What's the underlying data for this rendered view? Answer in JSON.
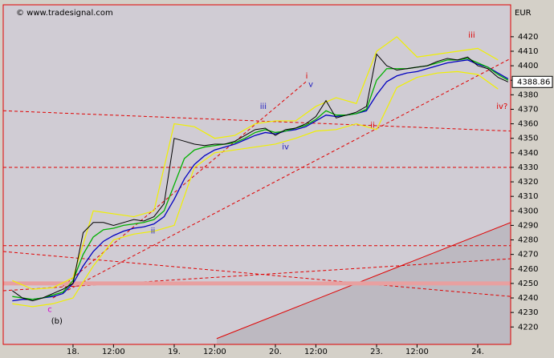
{
  "chart_data": {
    "type": "line",
    "watermark": "© www.tradesignal.com",
    "axis_unit": "EUR",
    "xlim": [
      -6.9,
      43.25
    ],
    "ylim": [
      4208,
      4442
    ],
    "xticks": [
      {
        "value": 0,
        "label": "18."
      },
      {
        "value": 4,
        "label": "12:00"
      },
      {
        "value": 10,
        "label": "19."
      },
      {
        "value": 14,
        "label": "12:00"
      },
      {
        "value": 20,
        "label": "20."
      },
      {
        "value": 24,
        "label": "12:00"
      },
      {
        "value": 30,
        "label": "23."
      },
      {
        "value": 34,
        "label": "12:00"
      },
      {
        "value": 40,
        "label": "24."
      }
    ],
    "yticks": [
      4220,
      4230,
      4240,
      4250,
      4260,
      4270,
      4280,
      4290,
      4300,
      4310,
      4320,
      4330,
      4340,
      4350,
      4360,
      4370,
      4380,
      4390,
      4400,
      4410,
      4420
    ],
    "x": [
      -6,
      -5,
      -4,
      -3,
      -2,
      -1,
      0,
      1,
      2,
      3,
      4,
      5,
      6,
      7,
      8,
      9,
      10,
      11,
      12,
      13,
      14,
      15,
      16,
      17,
      18,
      19,
      20,
      21,
      22,
      23,
      24,
      25,
      26,
      27,
      28,
      29,
      30,
      31,
      32,
      33,
      34,
      35,
      36,
      37,
      38,
      39,
      40,
      41,
      42,
      43
    ],
    "series": [
      {
        "color": "#f0f000",
        "width": 1.2,
        "x": [
          -6,
          -4,
          -2,
          0,
          2,
          4,
          6,
          8,
          10,
          12,
          14,
          16,
          18,
          20,
          22,
          24,
          26,
          28,
          30,
          32,
          34,
          36,
          38,
          40,
          42
        ],
        "values": [
          4252,
          4246,
          4247,
          4254,
          4300,
          4298,
          4296,
          4300,
          4360,
          4358,
          4350,
          4352,
          4360,
          4362,
          4362,
          4372,
          4378,
          4374,
          4410,
          4420,
          4406,
          4408,
          4410,
          4412,
          4404
        ]
      },
      {
        "color": "#f0f000",
        "width": 1.2,
        "x": [
          -6,
          -4,
          -2,
          0,
          2,
          4,
          6,
          8,
          10,
          12,
          14,
          16,
          18,
          20,
          22,
          24,
          26,
          28,
          30,
          32,
          34,
          36,
          38,
          40,
          42
        ],
        "values": [
          4236,
          4234,
          4236,
          4240,
          4262,
          4280,
          4284,
          4286,
          4290,
          4330,
          4340,
          4342,
          4344,
          4346,
          4350,
          4355,
          4356,
          4360,
          4356,
          4385,
          4392,
          4395,
          4396,
          4394,
          4384
        ]
      },
      {
        "color": "#0000c0",
        "width": 1.3,
        "values": [
          4238,
          4239,
          4239,
          4240,
          4241,
          4243,
          4250,
          4262,
          4272,
          4279,
          4283,
          4286,
          4288,
          4289,
          4291,
          4296,
          4308,
          4322,
          4332,
          4338,
          4342,
          4344,
          4346,
          4349,
          4352,
          4354,
          4353,
          4355,
          4356,
          4358,
          4362,
          4366,
          4365,
          4366,
          4367,
          4369,
          4380,
          4389,
          4393,
          4395,
          4396,
          4398,
          4400,
          4402,
          4403,
          4404,
          4401,
          4399,
          4395,
          4391
        ]
      },
      {
        "color": "#00b000",
        "width": 1.3,
        "values": [
          4241,
          4240,
          4239,
          4240,
          4242,
          4244,
          4252,
          4270,
          4282,
          4287,
          4288,
          4290,
          4291,
          4292,
          4294,
          4300,
          4318,
          4336,
          4342,
          4344,
          4345,
          4346,
          4347,
          4350,
          4354,
          4356,
          4354,
          4355,
          4357,
          4359,
          4363,
          4369,
          4366,
          4366,
          4367,
          4370,
          4390,
          4398,
          4398,
          4398,
          4399,
          4400,
          4402,
          4404,
          4404,
          4405,
          4402,
          4399,
          4394,
          4390
        ]
      },
      {
        "color": "#000000",
        "width": 1,
        "values": [
          4245,
          4240,
          4238,
          4240,
          4243,
          4246,
          4250,
          4285,
          4292,
          4292,
          4290,
          4292,
          4294,
          4293,
          4296,
          4305,
          4350,
          4348,
          4346,
          4345,
          4346,
          4346,
          4348,
          4352,
          4356,
          4357,
          4352,
          4356,
          4357,
          4360,
          4365,
          4376,
          4364,
          4366,
          4368,
          4372,
          4408,
          4400,
          4397,
          4398,
          4399,
          4400,
          4403,
          4405,
          4404,
          4406,
          4400,
          4398,
          4392,
          4388.86
        ]
      }
    ],
    "hlines": [
      {
        "value": 4330,
        "color": "#e00000",
        "width": 1,
        "dash": true
      },
      {
        "value": 4276,
        "color": "#e00000",
        "width": 1,
        "dash": true
      },
      {
        "value": 4250,
        "color": "#e8a0a0",
        "width": 5,
        "dash": false
      }
    ],
    "trendlines": [
      {
        "x": [
          14.2,
          43.25
        ],
        "y": [
          4212,
          4292
        ],
        "color": "#e00000",
        "dash": false,
        "fill_below": true
      },
      {
        "x": [
          -6.9,
          43.25
        ],
        "y": [
          4369,
          4355
        ],
        "color": "#e00000",
        "dash": true
      },
      {
        "x": [
          -1,
          23.2
        ],
        "y": [
          4248,
          4390
        ],
        "color": "#e00000",
        "dash": true
      },
      {
        "x": [
          -2,
          43.25
        ],
        "y": [
          4240,
          4405
        ],
        "color": "#e00000",
        "dash": true
      },
      {
        "x": [
          -6.9,
          43.25
        ],
        "y": [
          4272,
          4241
        ],
        "color": "#e00000",
        "dash": true
      },
      {
        "x": [
          -6.9,
          43.25
        ],
        "y": [
          4245,
          4267
        ],
        "color": "#e00000",
        "dash": true
      }
    ],
    "annotations": [
      {
        "text": "i",
        "x": 23.1,
        "y": 4393,
        "color": "#e00000"
      },
      {
        "text": "v",
        "x": 23.5,
        "y": 4387,
        "color": "#2020c0"
      },
      {
        "text": "iii",
        "x": 18.8,
        "y": 4372,
        "color": "#2020c0"
      },
      {
        "text": "iv",
        "x": 21,
        "y": 4344,
        "color": "#2020c0"
      },
      {
        "text": "ii",
        "x": 7.9,
        "y": 4286,
        "color": "#2020c0"
      },
      {
        "text": "c",
        "x": -2.3,
        "y": 4232,
        "color": "#d000d0"
      },
      {
        "text": "(b)",
        "x": -1.6,
        "y": 4224,
        "color": "#000000"
      },
      {
        "text": "ii",
        "x": 29.6,
        "y": 4359,
        "color": "#e00000"
      },
      {
        "text": "iii",
        "x": 39.4,
        "y": 4421,
        "color": "#e00000"
      },
      {
        "text": "iv?",
        "x": 42.4,
        "y": 4372,
        "color": "#e00000"
      }
    ]
  }
}
